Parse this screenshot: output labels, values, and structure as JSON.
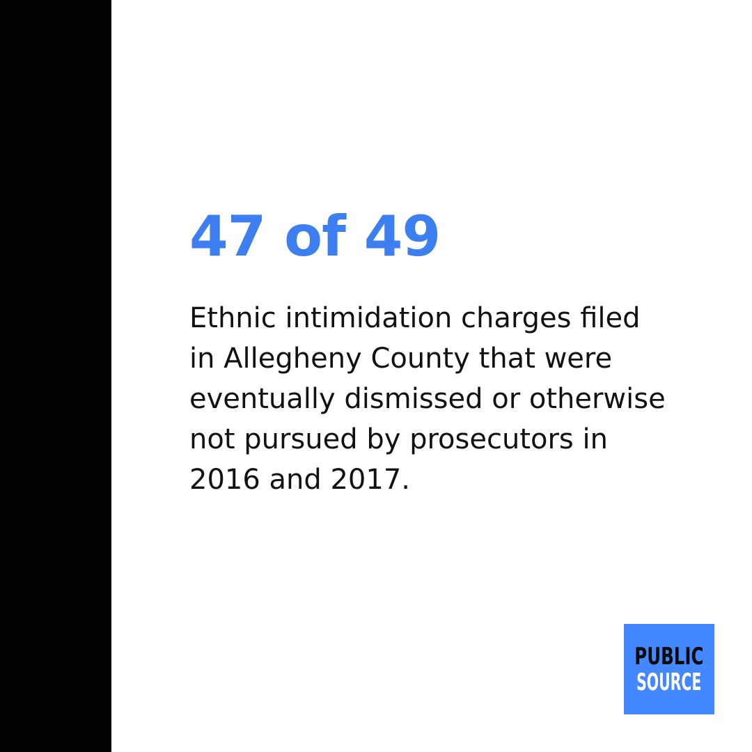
{
  "stat": {
    "headline": "47 of 49"
  },
  "description": {
    "lines": [
      "Ethnic intimidation charges filed",
      "in Allegheny County that were",
      "eventually dismissed or otherwise",
      "not pursued by prosecutors in",
      "2016 and 2017."
    ]
  },
  "logo": {
    "line1": "PUBLIC",
    "line2": "SOURCE"
  },
  "colors": {
    "accent": "#3d7ff0",
    "logo_background": "#4488ff",
    "sidebar": "#000000",
    "text": "#111111"
  }
}
